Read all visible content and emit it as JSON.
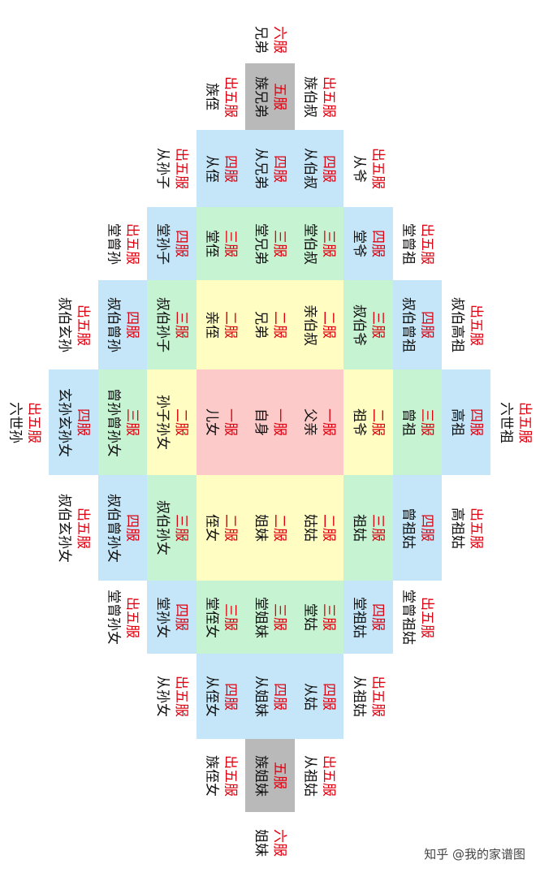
{
  "rows": [
    {
      "cells": [
        {
          "rank": "六服",
          "name": "兄弟",
          "color": "#ffffff"
        }
      ]
    },
    {
      "cells": [
        {
          "rank": "出五服",
          "name": "族侄",
          "color": "#ffffff"
        },
        {
          "rank": "五服",
          "name": "族兄弟",
          "color": "#b9b9b9"
        },
        {
          "rank": "出五服",
          "name": "族伯叔",
          "color": "#ffffff"
        }
      ]
    },
    {
      "cells": [
        {
          "rank": "出五服",
          "name": "从孙子",
          "color": "#ffffff"
        },
        {
          "rank": "四服",
          "name": "从侄",
          "color": "#c4e6f8"
        },
        {
          "rank": "四服",
          "name": "从兄弟",
          "color": "#c4e6f8"
        },
        {
          "rank": "四服",
          "name": "从伯叔",
          "color": "#c4e6f8"
        },
        {
          "rank": "出五服",
          "name": "从爷",
          "color": "#ffffff"
        }
      ]
    },
    {
      "cells": [
        {
          "rank": "出五服",
          "name": "堂曾孙",
          "color": "#ffffff"
        },
        {
          "rank": "四服",
          "name": "堂孙子",
          "color": "#c4e6f8"
        },
        {
          "rank": "三服",
          "name": "堂侄",
          "color": "#c6f3d2"
        },
        {
          "rank": "三服",
          "name": "堂兄弟",
          "color": "#c6f3d2"
        },
        {
          "rank": "三服",
          "name": "堂伯叔",
          "color": "#c6f3d2"
        },
        {
          "rank": "四服",
          "name": "堂爷",
          "color": "#c4e6f8"
        },
        {
          "rank": "出五服",
          "name": "堂曾祖",
          "color": "#ffffff"
        }
      ]
    },
    {
      "cells": [
        {
          "rank": "出五服",
          "name": "叔伯玄孙",
          "color": "#ffffff"
        },
        {
          "rank": "四服",
          "name": "叔伯曾孙",
          "color": "#c4e6f8"
        },
        {
          "rank": "三服",
          "name": "叔伯孙子",
          "color": "#c6f3d2"
        },
        {
          "rank": "二服",
          "name": "亲侄",
          "color": "#fffdc2"
        },
        {
          "rank": "二服",
          "name": "兄弟",
          "color": "#fffdc2"
        },
        {
          "rank": "二服",
          "name": "亲伯叔",
          "color": "#fffdc2"
        },
        {
          "rank": "三服",
          "name": "叔伯爷",
          "color": "#c6f3d2"
        },
        {
          "rank": "四服",
          "name": "叔伯曾祖",
          "color": "#c4e6f8"
        },
        {
          "rank": "出五服",
          "name": "叔伯高祖",
          "color": "#ffffff"
        }
      ]
    },
    {
      "cells": [
        {
          "rank": "出五服",
          "name": "六世孙",
          "color": "#ffffff"
        },
        {
          "rank": "四服",
          "name": "玄孙玄孙女",
          "color": "#c4e6f8"
        },
        {
          "rank": "三服",
          "name": "曾孙曾孙女",
          "color": "#c6f3d2"
        },
        {
          "rank": "二服",
          "name": "孙子孙女",
          "color": "#fffdc2"
        },
        {
          "rank": "一服",
          "name": "儿女",
          "color": "#fdcaca"
        },
        {
          "rank": "一服",
          "name": "自身",
          "color": "#fdcaca"
        },
        {
          "rank": "一服",
          "name": "父亲",
          "color": "#fdcaca"
        },
        {
          "rank": "二服",
          "name": "祖爷",
          "color": "#fffdc2"
        },
        {
          "rank": "三服",
          "name": "曾祖",
          "color": "#c6f3d2"
        },
        {
          "rank": "四服",
          "name": "高祖",
          "color": "#c4e6f8"
        },
        {
          "rank": "出五服",
          "name": "六世祖",
          "color": "#ffffff"
        }
      ]
    },
    {
      "cells": [
        {
          "rank": "出五服",
          "name": "叔伯玄孙女",
          "color": "#ffffff"
        },
        {
          "rank": "四服",
          "name": "叔伯曾孙女",
          "color": "#c4e6f8"
        },
        {
          "rank": "三服",
          "name": "叔伯孙女",
          "color": "#c6f3d2"
        },
        {
          "rank": "二服",
          "name": "侄女",
          "color": "#fffdc2"
        },
        {
          "rank": "二服",
          "name": "姐妹",
          "color": "#fffdc2"
        },
        {
          "rank": "二服",
          "name": "姑姑",
          "color": "#fffdc2"
        },
        {
          "rank": "三服",
          "name": "祖姑",
          "color": "#c6f3d2"
        },
        {
          "rank": "四服",
          "name": "曾祖姑",
          "color": "#c4e6f8"
        },
        {
          "rank": "出五服",
          "name": "高祖姑",
          "color": "#ffffff"
        }
      ]
    },
    {
      "cells": [
        {
          "rank": "出五服",
          "name": "堂曾孙女",
          "color": "#ffffff"
        },
        {
          "rank": "四服",
          "name": "堂孙女",
          "color": "#c4e6f8"
        },
        {
          "rank": "三服",
          "name": "堂侄女",
          "color": "#c6f3d2"
        },
        {
          "rank": "三服",
          "name": "堂姐妹",
          "color": "#c6f3d2"
        },
        {
          "rank": "三服",
          "name": "堂姑",
          "color": "#c6f3d2"
        },
        {
          "rank": "四服",
          "name": "堂祖姑",
          "color": "#c4e6f8"
        },
        {
          "rank": "出五服",
          "name": "堂曾祖姑",
          "color": "#ffffff"
        }
      ]
    },
    {
      "cells": [
        {
          "rank": "出五服",
          "name": "从孙女",
          "color": "#ffffff"
        },
        {
          "rank": "四服",
          "name": "从侄女",
          "color": "#c4e6f8"
        },
        {
          "rank": "四服",
          "name": "从姐妹",
          "color": "#c4e6f8"
        },
        {
          "rank": "四服",
          "name": "从姑",
          "color": "#c4e6f8"
        },
        {
          "rank": "出五服",
          "name": "从祖姑",
          "color": "#ffffff"
        }
      ]
    },
    {
      "cells": [
        {
          "rank": "出五服",
          "name": "族侄女",
          "color": "#ffffff"
        },
        {
          "rank": "五服",
          "name": "族姐妹",
          "color": "#b9b9b9"
        },
        {
          "rank": "出五服",
          "name": "从祖姑",
          "color": "#ffffff"
        }
      ]
    },
    {
      "cells": [
        {
          "rank": "六服",
          "name": "姐妹",
          "color": "#ffffff"
        }
      ]
    }
  ],
  "watermark": "知乎 @我的家谱图"
}
